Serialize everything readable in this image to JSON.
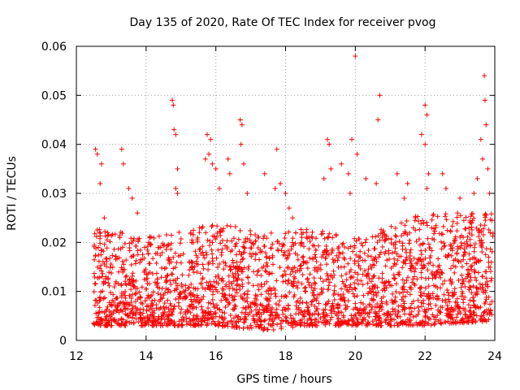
{
  "chart_data": {
    "type": "scatter",
    "title": "Day 135 of 2020, Rate Of TEC Index for receiver pvog",
    "xlabel": "GPS time / hours",
    "ylabel": "ROTI / TECUs",
    "xlim": [
      12,
      24
    ],
    "ylim": [
      0,
      0.06
    ],
    "xticks": [
      "12",
      "14",
      "16",
      "18",
      "20",
      "22",
      "24"
    ],
    "yticks": [
      "0",
      "0.01",
      "0.02",
      "0.03",
      "0.04",
      "0.05",
      "0.06"
    ],
    "grid": true,
    "marker": "+",
    "color": "#ff0000",
    "series": [
      {
        "name": "ROTI",
        "points": [
          [
            12.55,
            0.039
          ],
          [
            12.6,
            0.038
          ],
          [
            12.68,
            0.032
          ],
          [
            12.72,
            0.036
          ],
          [
            12.8,
            0.025
          ],
          [
            12.9,
            0.022
          ],
          [
            13.3,
            0.039
          ],
          [
            13.35,
            0.036
          ],
          [
            13.5,
            0.031
          ],
          [
            13.6,
            0.029
          ],
          [
            13.75,
            0.026
          ],
          [
            14.75,
            0.049
          ],
          [
            14.78,
            0.048
          ],
          [
            14.8,
            0.043
          ],
          [
            14.85,
            0.042
          ],
          [
            14.9,
            0.035
          ],
          [
            14.85,
            0.031
          ],
          [
            14.9,
            0.03
          ],
          [
            15.75,
            0.042
          ],
          [
            15.85,
            0.041
          ],
          [
            15.8,
            0.038
          ],
          [
            15.7,
            0.037
          ],
          [
            15.9,
            0.036
          ],
          [
            16.0,
            0.035
          ],
          [
            16.1,
            0.031
          ],
          [
            16.35,
            0.037
          ],
          [
            16.4,
            0.034
          ],
          [
            16.7,
            0.045
          ],
          [
            16.75,
            0.044
          ],
          [
            16.72,
            0.04
          ],
          [
            16.8,
            0.036
          ],
          [
            16.9,
            0.03
          ],
          [
            17.4,
            0.034
          ],
          [
            17.75,
            0.039
          ],
          [
            17.7,
            0.031
          ],
          [
            17.85,
            0.032
          ],
          [
            18.0,
            0.03
          ],
          [
            18.1,
            0.027
          ],
          [
            18.2,
            0.025
          ],
          [
            19.2,
            0.041
          ],
          [
            19.25,
            0.04
          ],
          [
            19.3,
            0.035
          ],
          [
            19.1,
            0.033
          ],
          [
            19.6,
            0.036
          ],
          [
            19.8,
            0.034
          ],
          [
            19.85,
            0.03
          ],
          [
            19.9,
            0.041
          ],
          [
            20.0,
            0.058
          ],
          [
            20.05,
            0.038
          ],
          [
            20.3,
            0.033
          ],
          [
            20.6,
            0.032
          ],
          [
            20.7,
            0.05
          ],
          [
            20.65,
            0.045
          ],
          [
            21.2,
            0.034
          ],
          [
            21.4,
            0.029
          ],
          [
            21.5,
            0.032
          ],
          [
            21.9,
            0.042
          ],
          [
            22.0,
            0.048
          ],
          [
            22.05,
            0.046
          ],
          [
            22.0,
            0.04
          ],
          [
            22.1,
            0.034
          ],
          [
            22.05,
            0.031
          ],
          [
            22.5,
            0.034
          ],
          [
            22.6,
            0.031
          ],
          [
            23.0,
            0.029
          ],
          [
            23.4,
            0.03
          ],
          [
            23.5,
            0.033
          ],
          [
            23.6,
            0.041
          ],
          [
            23.7,
            0.054
          ],
          [
            23.72,
            0.049
          ],
          [
            23.75,
            0.044
          ],
          [
            23.65,
            0.037
          ],
          [
            23.8,
            0.035
          ],
          [
            23.85,
            0.03
          ]
        ],
        "band": {
          "x_start": 12.5,
          "x_end": 23.95,
          "y_floor": 0.0015,
          "baseline_ranges": [
            [
              12.5,
              0.003,
              0.024
            ],
            [
              14.0,
              0.003,
              0.021
            ],
            [
              16.0,
              0.003,
              0.024
            ],
            [
              17.5,
              0.002,
              0.022
            ],
            [
              18.5,
              0.003,
              0.023
            ],
            [
              20.0,
              0.003,
              0.021
            ],
            [
              22.0,
              0.003,
              0.026
            ],
            [
              23.95,
              0.004,
              0.026
            ]
          ]
        }
      }
    ]
  }
}
